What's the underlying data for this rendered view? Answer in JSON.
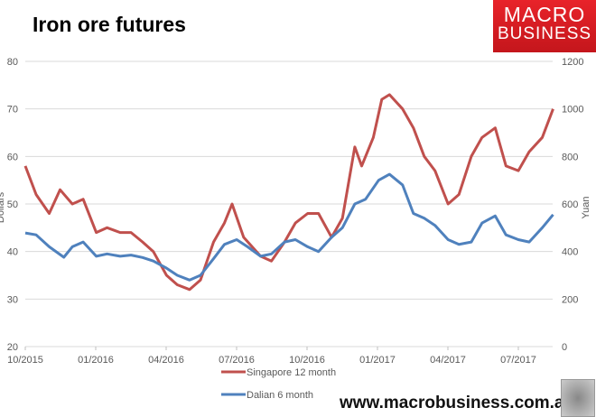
{
  "title": "Iron ore futures",
  "logo": {
    "line1": "MACRO",
    "line2": "BUSINESS",
    "color": "#d81e25"
  },
  "website": "www.macrobusiness.com.au",
  "chart_data": {
    "type": "line",
    "title": "Iron ore futures",
    "left_axis": {
      "label": "Dollars",
      "range": [
        20,
        80
      ],
      "ticks": [
        20,
        30,
        40,
        50,
        60,
        70,
        80
      ]
    },
    "right_axis": {
      "label": "Yuan",
      "range": [
        0,
        1200
      ],
      "ticks": [
        0,
        200,
        400,
        600,
        800,
        1000,
        1200
      ]
    },
    "x_ticks": [
      "10/2015",
      "01/2016",
      "04/2016",
      "07/2016",
      "10/2016",
      "01/2017",
      "04/2017",
      "07/2017"
    ],
    "x_range": [
      "2015-10-01",
      "2017-08-20"
    ],
    "grid": true,
    "legend": "bottom",
    "series": [
      {
        "name": "Singapore 12 month",
        "axis": "left",
        "color": "#c0504d",
        "x": [
          "2015-10-01",
          "2015-10-15",
          "2015-11-01",
          "2015-11-15",
          "2015-12-01",
          "2015-12-15",
          "2016-01-01",
          "2016-01-15",
          "2016-02-01",
          "2016-02-15",
          "2016-03-01",
          "2016-03-15",
          "2016-04-01",
          "2016-04-15",
          "2016-05-01",
          "2016-05-15",
          "2016-06-01",
          "2016-06-15",
          "2016-06-25",
          "2016-07-10",
          "2016-08-01",
          "2016-08-15",
          "2016-09-01",
          "2016-09-15",
          "2016-10-01",
          "2016-10-15",
          "2016-11-01",
          "2016-11-15",
          "2016-12-01",
          "2016-12-10",
          "2016-12-25",
          "2017-01-05",
          "2017-01-15",
          "2017-02-01",
          "2017-02-15",
          "2017-03-01",
          "2017-03-15",
          "2017-04-01",
          "2017-04-15",
          "2017-05-01",
          "2017-05-15",
          "2017-06-01",
          "2017-06-15",
          "2017-07-01",
          "2017-07-15",
          "2017-08-01",
          "2017-08-15"
        ],
        "y": [
          58,
          52,
          48,
          53,
          50,
          51,
          44,
          45,
          44,
          44,
          42,
          40,
          35,
          33,
          32,
          34,
          42,
          46,
          50,
          43,
          39,
          38,
          42,
          46,
          48,
          48,
          43,
          47,
          62,
          58,
          64,
          72,
          73,
          70,
          66,
          60,
          57,
          50,
          52,
          60,
          64,
          66,
          58,
          57,
          61,
          64,
          70
        ]
      },
      {
        "name": "Dalian 6 month",
        "axis": "right",
        "color": "#4f81bd",
        "x": [
          "2015-10-01",
          "2015-10-15",
          "2015-11-01",
          "2015-11-20",
          "2015-12-01",
          "2015-12-15",
          "2016-01-01",
          "2016-01-15",
          "2016-02-01",
          "2016-02-15",
          "2016-03-01",
          "2016-03-15",
          "2016-04-01",
          "2016-04-15",
          "2016-05-01",
          "2016-05-15",
          "2016-06-01",
          "2016-06-15",
          "2016-07-01",
          "2016-07-15",
          "2016-08-01",
          "2016-08-15",
          "2016-09-01",
          "2016-09-15",
          "2016-10-01",
          "2016-10-15",
          "2016-11-01",
          "2016-11-15",
          "2016-12-01",
          "2016-12-15",
          "2017-01-01",
          "2017-01-15",
          "2017-02-01",
          "2017-02-15",
          "2017-03-01",
          "2017-03-15",
          "2017-04-01",
          "2017-04-15",
          "2017-05-01",
          "2017-05-15",
          "2017-06-01",
          "2017-06-15",
          "2017-07-01",
          "2017-07-15",
          "2017-08-01",
          "2017-08-15"
        ],
        "y": [
          478,
          470,
          420,
          376,
          420,
          440,
          380,
          390,
          380,
          385,
          375,
          360,
          330,
          300,
          280,
          300,
          370,
          430,
          450,
          420,
          380,
          390,
          440,
          450,
          420,
          400,
          460,
          500,
          600,
          620,
          700,
          725,
          680,
          560,
          540,
          510,
          450,
          430,
          440,
          520,
          550,
          470,
          450,
          440,
          500,
          555
        ]
      }
    ]
  }
}
